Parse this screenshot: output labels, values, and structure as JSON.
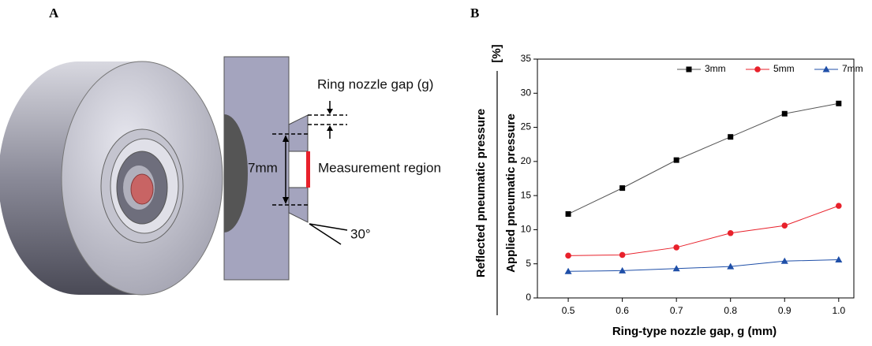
{
  "panel_a": {
    "label": "A",
    "gap_label": "Ring nozzle gap (g)",
    "diameter_label": "7mm",
    "region_label": "Measurement region",
    "angle_label": "30°"
  },
  "panel_b": {
    "label": "B"
  },
  "chart_data": {
    "type": "line",
    "ylabel_numerator": "Reflected pneumatic pressure",
    "ylabel_denominator": "Applied pneumatic pressure",
    "ylabel_unit": "[%]",
    "xlabel": "Ring-type nozzle gap, g (mm)",
    "x": [
      0.5,
      0.6,
      0.7,
      0.8,
      0.9,
      1.0
    ],
    "series": [
      {
        "name": "3mm",
        "color": "#000000",
        "line_color": "#555555",
        "marker": "square",
        "values": [
          12.3,
          16.1,
          20.2,
          23.6,
          27.0,
          28.5
        ]
      },
      {
        "name": "5mm",
        "color": "#e8212b",
        "line_color": "#e8212b",
        "marker": "circle",
        "values": [
          6.2,
          6.3,
          7.4,
          9.5,
          10.6,
          13.5
        ]
      },
      {
        "name": "7mm",
        "color": "#1f4fa8",
        "line_color": "#1f4fa8",
        "marker": "triangle",
        "values": [
          3.9,
          4.0,
          4.3,
          4.6,
          5.4,
          5.6
        ]
      }
    ],
    "xlim": [
      0.443,
      1.028
    ],
    "ylim": [
      0,
      35
    ],
    "xticks": [
      0.5,
      0.6,
      0.7,
      0.8,
      0.9,
      {
        "value": 1,
        "label": "1.0"
      }
    ],
    "yticks": [
      0,
      5,
      10,
      15,
      20,
      25,
      30,
      35
    ],
    "legend": "top-right"
  }
}
